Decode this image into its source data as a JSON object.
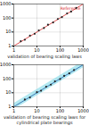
{
  "chart_data": [
    {
      "type": "scatter",
      "caption": "validation of bearing scaling laws",
      "log": true,
      "grid": true,
      "xlim": [
        1,
        1000
      ],
      "ylim": [
        1,
        1000
      ],
      "xticks": [
        1,
        10,
        100,
        1000
      ],
      "yticks": [
        1,
        10,
        100,
        1000
      ],
      "series": [
        {
          "name": "Reference",
          "type": "line",
          "color": "#d62728",
          "line_style": "solid",
          "x": [
            1,
            1000
          ],
          "values": [
            1,
            1000
          ]
        },
        {
          "type": "scatter",
          "color": "#222222",
          "marker": "circle",
          "x": [
            2,
            3,
            5,
            8,
            12,
            20,
            30,
            50,
            80,
            120,
            200,
            300,
            500
          ],
          "values": [
            2.2,
            2.8,
            5.5,
            7.5,
            13,
            19,
            33,
            48,
            85,
            115,
            210,
            290,
            520
          ]
        }
      ]
    },
    {
      "type": "scatter",
      "caption": "validation of bearing scaling laws for cylindrical plate bearings",
      "log": true,
      "grid": true,
      "xlim": [
        1,
        1000
      ],
      "ylim": [
        1,
        1000
      ],
      "xticks": [
        1,
        10,
        100,
        1000
      ],
      "yticks": [
        1,
        10,
        100,
        1000
      ],
      "band": {
        "color": "#7fd8e8",
        "x": [
          1,
          1000
        ],
        "lower": [
          0.6,
          600
        ],
        "upper": [
          1.7,
          1700
        ]
      },
      "series": [
        {
          "type": "line",
          "color": "#1f5fa8",
          "line_style": "solid",
          "x": [
            1,
            1000
          ],
          "values": [
            1,
            1000
          ]
        },
        {
          "type": "scatter",
          "color": "#222222",
          "marker": "circle",
          "x": [
            3,
            5,
            10,
            15,
            25,
            40,
            60,
            100,
            150,
            250,
            400
          ],
          "values": [
            3.3,
            4.6,
            11,
            14,
            27,
            38,
            65,
            95,
            160,
            240,
            420
          ]
        }
      ]
    }
  ]
}
